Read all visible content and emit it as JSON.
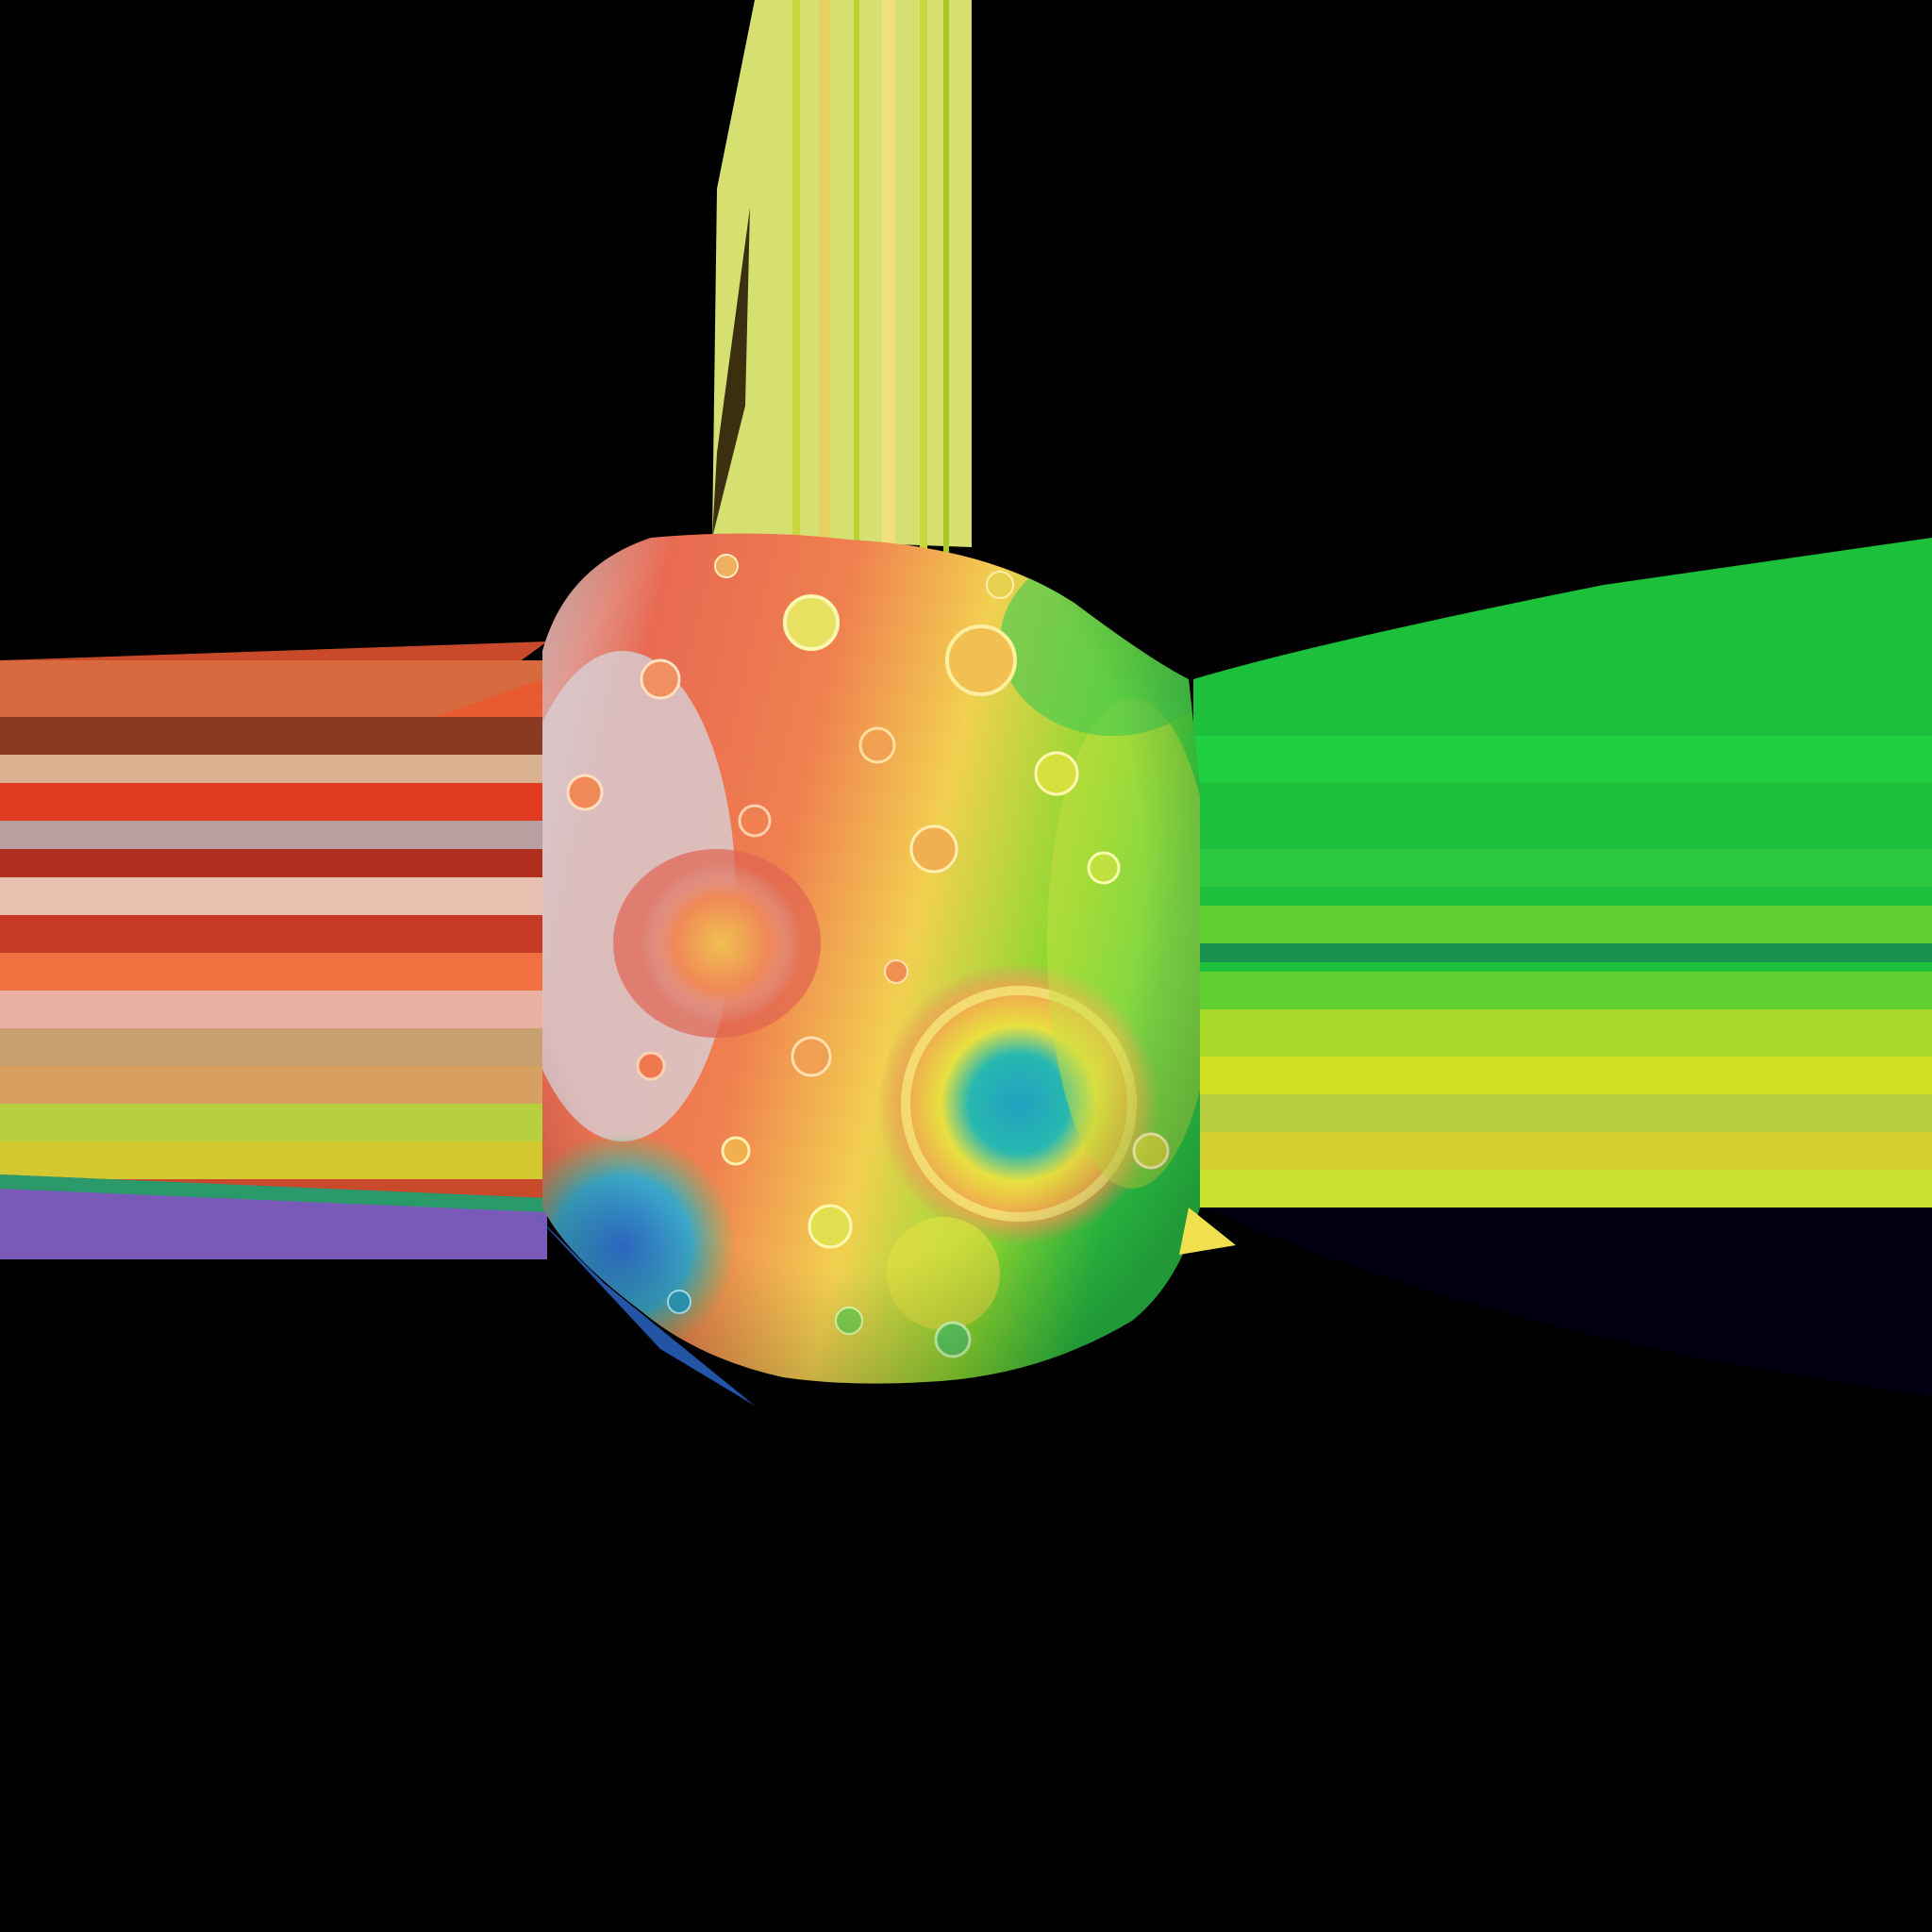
{
  "scene": {
    "subject": "cratered-moon-elevation-map",
    "background_color": "#000000",
    "colormap": [
      "#2f6fd0",
      "#2fb8c8",
      "#2cc85a",
      "#b8e02a",
      "#f0e050",
      "#f5b045",
      "#f07a55",
      "#e85a50",
      "#d8d0d6"
    ],
    "streak_colors": {
      "top": [
        "#d6e070",
        "#c8d83a",
        "#e6d060",
        "#b8d030",
        "#f0e080"
      ],
      "left": [
        "#c84a2a",
        "#8a3a20",
        "#d9b090",
        "#e03a20",
        "#b03020",
        "#e8c0b0",
        "#f07040",
        "#c8a070",
        "#b8d040",
        "#d4c830"
      ],
      "right": [
        "#1cc03a",
        "#20d040",
        "#60d030",
        "#a8d828",
        "#d0e020",
        "#40c850"
      ],
      "lower_left": [
        "#7a5ab8",
        "#2a9a6a"
      ],
      "lower_right": [
        "#000010"
      ]
    }
  }
}
